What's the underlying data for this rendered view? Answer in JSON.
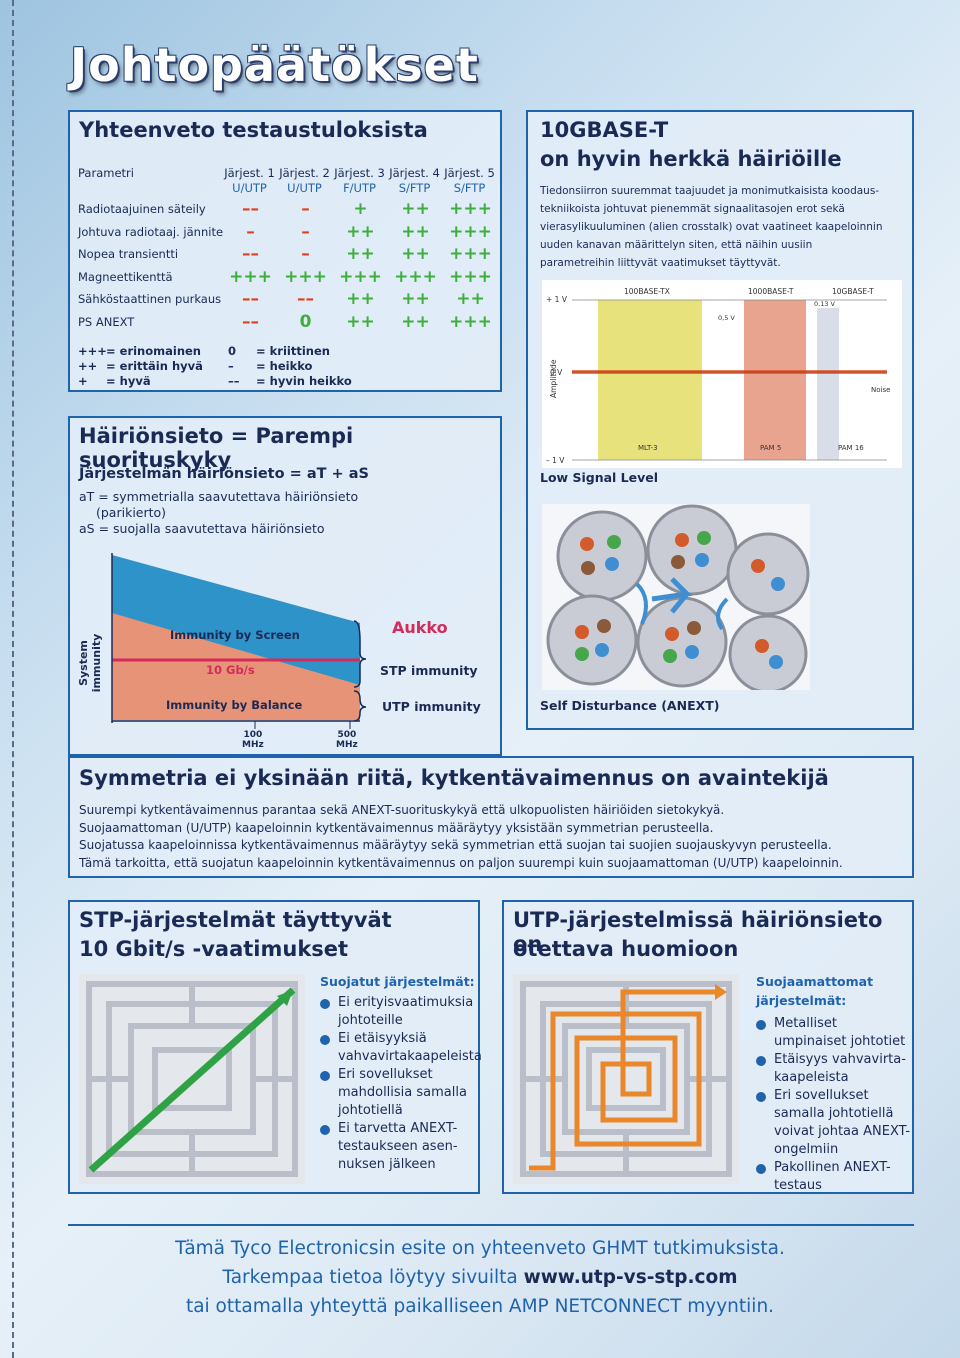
{
  "page_title": "Johtopäätökset",
  "results": {
    "title": "Yhteenveto testaustuloksista",
    "param_header": "Parametri",
    "systems": [
      {
        "name": "Järjest. 1",
        "type": "U/UTP"
      },
      {
        "name": "Järjest. 2",
        "type": "U/UTP"
      },
      {
        "name": "Järjest. 3",
        "type": "F/UTP"
      },
      {
        "name": "Järjest. 4",
        "type": "S/FTP"
      },
      {
        "name": "Järjest. 5",
        "type": "S/FTP"
      }
    ],
    "rows": [
      {
        "label": "Radiotaajuinen säteily",
        "values": [
          "--",
          "-",
          "+",
          "++",
          "+++"
        ]
      },
      {
        "label": "Johtuva radiotaaj. jännite",
        "values": [
          "-",
          "-",
          "++",
          "++",
          "+++"
        ]
      },
      {
        "label": "Nopea transientti",
        "values": [
          "--",
          "-",
          "++",
          "++",
          "+++"
        ]
      },
      {
        "label": "Magneettikenttä",
        "values": [
          "+++",
          "+++",
          "+++",
          "+++",
          "+++"
        ]
      },
      {
        "label": "Sähköstaattinen purkaus",
        "values": [
          "--",
          "--",
          "++",
          "++",
          "++"
        ]
      },
      {
        "label": "PS ANEXT",
        "values": [
          "--",
          "0",
          "++",
          "++",
          "+++"
        ]
      }
    ],
    "legend": [
      {
        "sym": "+++",
        "text": "= erinomainen"
      },
      {
        "sym": "0",
        "text": "= kriittinen"
      },
      {
        "sym": "++",
        "text": "= erittäin hyvä"
      },
      {
        "sym": "–",
        "text": "= heikko"
      },
      {
        "sym": "+",
        "text": "= hyvä"
      },
      {
        "sym": "––",
        "text": "= hyvin heikko"
      }
    ]
  },
  "tenG": {
    "title1": "10GBASE-T",
    "title2": "on hyvin herkkä häiriöille",
    "body": "Tiedonsiirron suuremmat taajuudet ja monimutkaisista koodaus-tekniikoista johtuvat pienemmät signaalitasojen erot sekä vierasylikuuluminen (alien crosstalk) ovat vaatineet kaapeloinnin uuden kanavan määrittelyn siten, että näihin uusiin parametreihin liittyvät vaatimukset täyttyvät.",
    "chart": {
      "bands": [
        "100BASE-TX",
        "1000BASE-T",
        "10GBASE-T"
      ],
      "ylabels": [
        "+ 1 V",
        "0 V",
        "– 1 V"
      ],
      "levels": [
        "0,5 V",
        "0,13 V"
      ],
      "axis": "Amplitude",
      "noise": "Noise",
      "codes": [
        "MLT-3",
        "PAM 5",
        "PAM 16"
      ]
    },
    "low_signal": "Low Signal Level",
    "self_dist": "Self Disturbance (ANEXT)"
  },
  "immunity": {
    "title": "Häiriönsieto = Parempi suorituskyky",
    "formula": "Järjestelmän häiriönsieto = aT + aS",
    "def1": "aT = symmetrialla saavutettava häiriönsieto",
    "def1b": "(parikierto)",
    "def2": "aS = suojalla saavutettava häiriönsieto",
    "y_axis": "System immunity",
    "screen": "Immunity by Screen",
    "balance": "Immunity by Balance",
    "gbs": "10 Gb/s",
    "gap": "Aukko",
    "stp": "STP immunity",
    "utp": "UTP immunity",
    "x1": "100",
    "x1u": "MHz",
    "x2": "500",
    "x2u": "MHz"
  },
  "symmetry": {
    "title": "Symmetria ei yksinään riitä, kytkentävaimennus on avaintekijä",
    "lines": [
      "Suurempi kytkentävaimennus parantaa sekä ANEXT-suorituskykyä että ulkopuolisten häiriöiden sietokykyä.",
      "Suojaamattoman (U/UTP) kaapeloinnin kytkentävaimennus määräytyy yksistään symmetrian perusteella.",
      "Suojatussa kaapeloinnissa kytkentävaimennus määräytyy sekä symmetrian että suojan tai suojien suojauskyvyn perusteella.",
      "Tämä tarkoitta, että suojatun kaapeloinnin kytkentävaimennus on paljon suurempi kuin suojaamattoman (U/UTP) kaapeloinnin."
    ]
  },
  "stp": {
    "title1": "STP-järjestelmät täyttyvät",
    "title2": "10 Gbit/s -vaatimukset",
    "sub": "Suojatut järjestelmät:",
    "items": [
      "Ei erityisvaatimuksia johtoteille",
      "Ei etäisyyksiä vahvavirtakaapeleista",
      "Eri sovellukset mahdollisia samalla johtotiellä",
      "Ei tarvetta ANEXT-testaukseen asen-nuksen jälkeen"
    ]
  },
  "utp": {
    "title1": "UTP-järjestelmissä häiriönsieto on",
    "title2": "otettava huomioon",
    "sub1": "Suojaamattomat",
    "sub2": "järjestelmät:",
    "items": [
      "Metalliset umpinaiset johtotiet",
      "Etäisyys vahvavirta-kaapeleista",
      "Eri sovellukset samalla johtotiellä voivat johtaa ANEXT-ongelmiin",
      "Pakollinen ANEXT-testaus"
    ]
  },
  "footer": {
    "line1": "Tämä Tyco Electronicsin esite on yhteenveto GHMT tutkimuksista.",
    "line2a": "Tarkempaa tietoa löytyy sivuilta ",
    "line2b": "www.utp-vs-stp.com",
    "line3": "tai ottamalla yhteyttä paikalliseen AMP NETCONNECT myyntiin."
  }
}
